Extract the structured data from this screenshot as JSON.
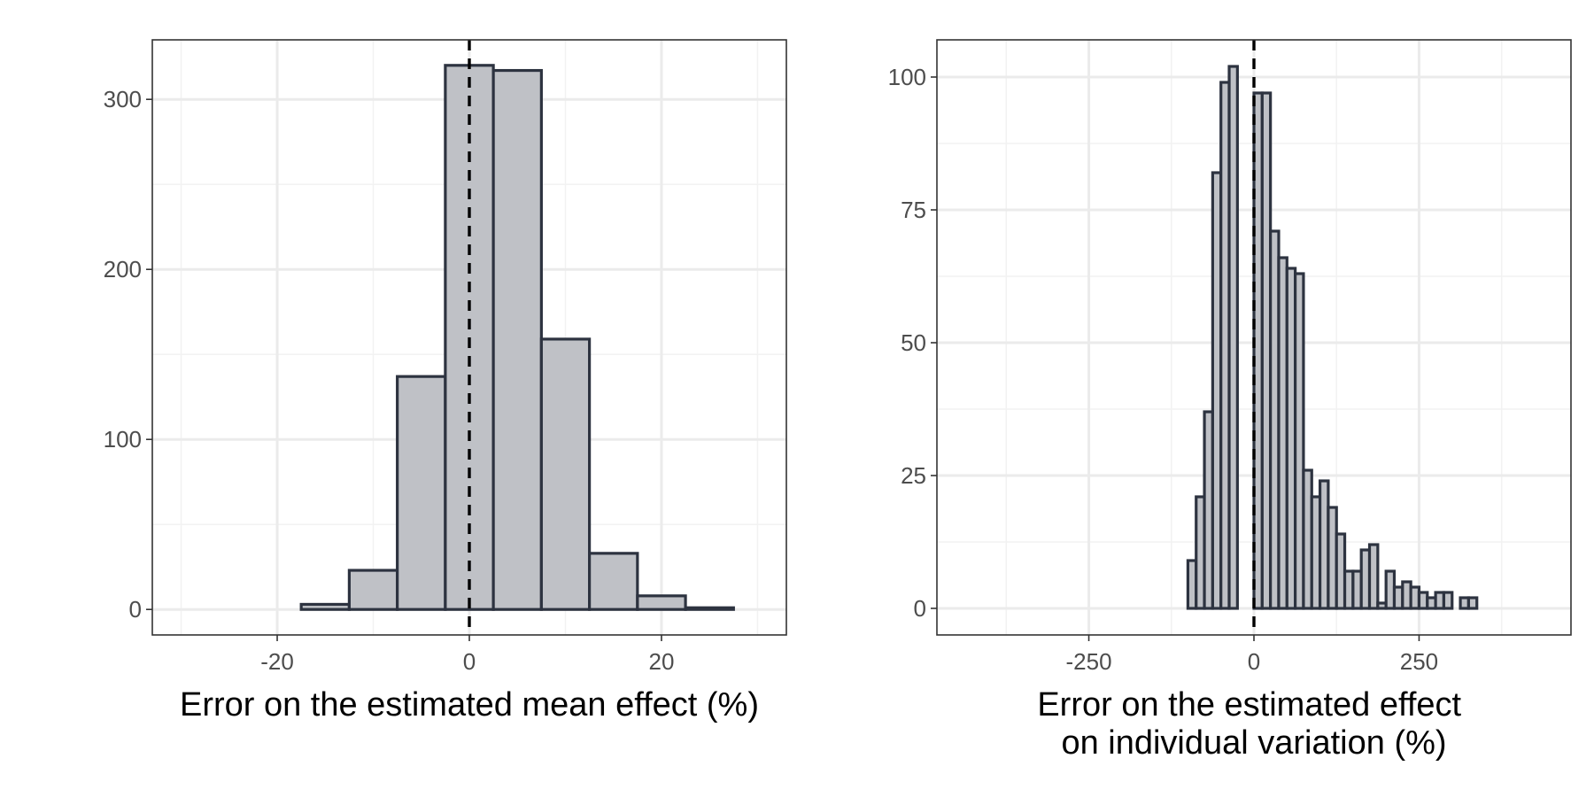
{
  "colors": {
    "bar_fill": "#bfc1c6",
    "bar_stroke": "#2d3340",
    "grid_major": "#ebebeb",
    "grid_minor": "#f2f2f2",
    "panel_border": "#333333",
    "reference_line": "#000000",
    "tick_text": "#4d4d4d"
  },
  "chart_data": [
    {
      "type": "bar",
      "subtype": "histogram",
      "xlabel": "Error on the estimated mean effect (%)",
      "ylabel": "",
      "xlim": [
        -33,
        33
      ],
      "ylim": [
        -15,
        335
      ],
      "x_ticks": [
        -20,
        0,
        20
      ],
      "x_tick_labels": [
        "-20",
        "0",
        "20"
      ],
      "y_ticks": [
        0,
        100,
        200,
        300
      ],
      "y_tick_labels": [
        "0",
        "100",
        "200",
        "300"
      ],
      "grid": true,
      "reference_line_x": 0,
      "bin_width": 5,
      "bin_centers": [
        -25,
        -20,
        -15,
        -10,
        -5,
        0,
        5,
        10,
        15,
        20,
        25
      ],
      "values": [
        0,
        0,
        3,
        23,
        137,
        320,
        317,
        159,
        33,
        8,
        1
      ]
    },
    {
      "type": "bar",
      "subtype": "histogram",
      "xlabel": "Error on the estimated effect\non individual variation (%)",
      "ylabel": "",
      "xlim": [
        -480,
        480
      ],
      "ylim": [
        -5,
        107
      ],
      "x_ticks": [
        -250,
        0,
        250
      ],
      "x_tick_labels": [
        "-250",
        "0",
        "250"
      ],
      "y_ticks": [
        0,
        25,
        50,
        75,
        100
      ],
      "y_tick_labels": [
        "0",
        "25",
        "50",
        "75",
        "100"
      ],
      "grid": true,
      "reference_line_x": 0,
      "bin_width": 12.5,
      "bin_centers": [
        -418.75,
        -406.25,
        -393.75,
        -381.25,
        -368.75,
        -356.25,
        -343.75,
        -331.25,
        -318.75,
        -306.25,
        -293.75,
        -281.25,
        -268.75,
        -256.25,
        -243.75,
        -231.25,
        -218.75,
        -206.25,
        -193.75,
        -181.25,
        -168.75,
        -156.25,
        -143.75,
        -131.25,
        -118.75,
        -106.25,
        -93.75,
        -81.25,
        -68.75,
        -56.25,
        -43.75,
        -31.25,
        -18.75,
        -6.25,
        6.25,
        18.75,
        31.25,
        43.75,
        56.25,
        68.75,
        81.25,
        93.75,
        106.25,
        118.75,
        131.25,
        143.75,
        156.25,
        168.75,
        181.25,
        193.75,
        206.25,
        218.75,
        231.25,
        243.75,
        256.25,
        268.75,
        281.25,
        293.75,
        306.25,
        318.75,
        331.25,
        343.75,
        356.25,
        368.75,
        381.25,
        393.75,
        406.25,
        418.75
      ],
      "values": [
        0,
        0,
        0,
        0,
        0,
        0,
        0,
        0,
        0,
        0,
        0,
        0,
        0,
        0,
        0,
        0,
        0,
        0,
        0,
        0,
        0,
        0,
        0,
        0,
        0,
        0,
        9,
        21,
        37,
        82,
        99,
        102,
        0,
        0,
        97,
        97,
        71,
        66,
        64,
        63,
        26,
        21,
        24,
        19,
        14,
        7,
        7,
        11,
        12,
        1,
        7,
        4,
        5,
        4,
        3,
        2,
        3,
        3,
        0,
        2,
        2,
        0,
        0,
        0,
        0,
        0,
        0,
        0
      ]
    }
  ]
}
